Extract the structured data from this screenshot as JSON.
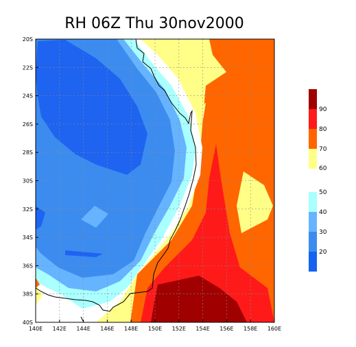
{
  "title": "RH 06Z Thu 30nov2000",
  "lat_labels": [
    "20S",
    "22S",
    "24S",
    "26S",
    "28S",
    "30S",
    "32S",
    "34S",
    "36S",
    "38S",
    "40S"
  ],
  "lon_labels": [
    "140E",
    "142E",
    "144E",
    "146E",
    "148E",
    "150E",
    "152E",
    "154E",
    "156E",
    "158E",
    "160E"
  ],
  "colorbar": {
    "upper_labels": [
      "90",
      "80",
      "70",
      "60"
    ],
    "lower_labels": [
      "50",
      "40",
      "30",
      "20"
    ],
    "upper_colors": [
      "#a00000",
      "#ff1a1a",
      "#ff6600",
      "#ffff88"
    ],
    "lower_colors": [
      "#aaffff",
      "#66b4ff",
      "#3c8cf0",
      "#1464f0"
    ]
  },
  "palette": {
    "deep_blue": "#1e64f0",
    "mid_blue": "#3c8cf0",
    "light_blue": "#66b4ff",
    "cyan": "#aaffff",
    "white": "#ffffff",
    "yellow": "#ffff88",
    "orange": "#ff6600",
    "red": "#ff1a1a",
    "dark_red": "#a00000"
  }
}
